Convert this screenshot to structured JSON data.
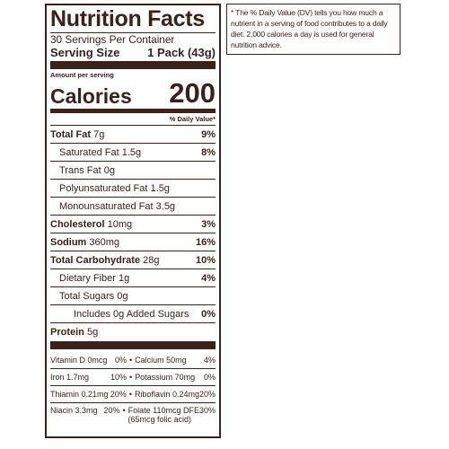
{
  "label": {
    "title": "Nutrition Facts",
    "servings_per_container": "30 Servings Per Container",
    "serving_size_label": "Serving Size",
    "serving_size_value": "1 Pack (43g)",
    "amount_per_serving": "Amount per serving",
    "calories_label": "Calories",
    "calories_value": "200",
    "dv_header": "% Daily Value*"
  },
  "nutrients": {
    "total_fat": {
      "name": "Total Fat",
      "amount": "7g",
      "dv": "9%"
    },
    "saturated_fat": {
      "name": "Saturated Fat",
      "amount": "1.5g",
      "dv": "8%"
    },
    "trans_fat": {
      "name": "Trans Fat",
      "amount": "0g"
    },
    "polyunsaturated_fat": {
      "name": "Polyunsaturated Fat",
      "amount": "1.5g"
    },
    "monounsaturated_fat": {
      "name": "Monounsaturated Fat",
      "amount": "3.5g"
    },
    "cholesterol": {
      "name": "Cholesterol",
      "amount": "10mg",
      "dv": "3%"
    },
    "sodium": {
      "name": "Sodium",
      "amount": "360mg",
      "dv": "16%"
    },
    "total_carbohydrate": {
      "name": "Total Carbohydrate",
      "amount": "28g",
      "dv": "10%"
    },
    "dietary_fiber": {
      "name": "Dietary Fiber",
      "amount": "1g",
      "dv": "4%"
    },
    "total_sugars": {
      "name": "Total Sugars",
      "amount": "0g"
    },
    "added_sugars": {
      "text": "Includes 0g Added Sugars",
      "dv": "0%"
    },
    "protein": {
      "name": "Protein",
      "amount": "5g"
    }
  },
  "vitamins": [
    {
      "left_name": "Vitamin D 0mcg",
      "left_dv": "0%",
      "right_name": "Calcium 50mg",
      "right_dv": "4%"
    },
    {
      "left_name": "Iron 1.7mg",
      "left_dv": "10%",
      "right_name": "Potassium 70mg",
      "right_dv": "0%"
    },
    {
      "left_name": "Thiamin 0.21mg",
      "left_dv": "20%",
      "right_name": "Riboflavin 0.24mg",
      "right_dv": "20%"
    },
    {
      "left_name": "Niacin 3.3mg",
      "left_dv": "20%",
      "right_name": "Folate 110mcg DFE",
      "right_dv": "30%",
      "right_sub": "(65mcg folic acid)"
    }
  ],
  "bullet": "•",
  "footnote": "* The % Daily Value (DV) tells you how much a nutrient in a serving of food contributes to a daily diet. 2,000 calories a day is used for general nutrition advice.",
  "colors": {
    "ink": "#3a211c",
    "background": "#ffffff"
  }
}
